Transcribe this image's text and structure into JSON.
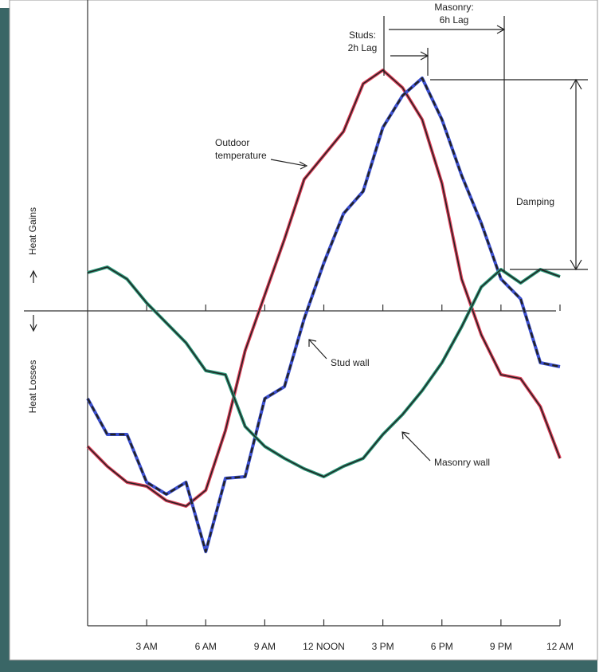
{
  "chart_data": {
    "type": "line",
    "x": [
      0,
      1,
      2,
      3,
      4,
      5,
      6,
      7,
      8,
      9,
      10,
      11,
      12,
      13,
      14,
      15,
      16,
      17,
      18,
      19,
      20,
      21,
      22,
      23,
      24
    ],
    "xlim": [
      0,
      24
    ],
    "xticks": [
      {
        "value": 3,
        "label": "3 AM"
      },
      {
        "value": 6,
        "label": "6 AM"
      },
      {
        "value": 9,
        "label": "9 AM"
      },
      {
        "value": 12,
        "label": "12 NOON"
      },
      {
        "value": 15,
        "label": "3 PM"
      },
      {
        "value": 18,
        "label": "6 PM"
      },
      {
        "value": 21,
        "label": "9 PM"
      },
      {
        "value": 24,
        "label": "12 AM"
      }
    ],
    "ylim": [
      -395,
      390
    ],
    "y_axis_labels": {
      "positive": "Heat Gains",
      "negative": "Heat Losses"
    },
    "series": [
      {
        "name": "Outdoor temperature",
        "color": "#e0405a",
        "dashed": false,
        "values": [
          -170,
          -195,
          -215,
          -220,
          -238,
          -245,
          -225,
          -150,
          -50,
          20,
          90,
          165,
          195,
          225,
          285,
          302,
          280,
          240,
          160,
          40,
          -30,
          -80,
          -85,
          -120,
          -185
        ]
      },
      {
        "name": "Stud wall",
        "color": "#3b4fd0",
        "dashed": true,
        "values": [
          -110,
          -155,
          -155,
          -215,
          -230,
          -215,
          -302,
          -210,
          -208,
          -110,
          -95,
          -10,
          60,
          122,
          150,
          230,
          270,
          292,
          240,
          170,
          110,
          40,
          15,
          -65,
          -70
        ]
      },
      {
        "name": "Masonry wall",
        "color": "#2a9a7a",
        "dashed": false,
        "values": [
          48,
          55,
          40,
          10,
          -15,
          -40,
          -75,
          -80,
          -145,
          -170,
          -185,
          -198,
          -208,
          -195,
          -185,
          -155,
          -130,
          -100,
          -65,
          -20,
          30,
          52,
          35,
          52,
          43
        ]
      }
    ],
    "annotations": [
      {
        "lines": [
          "Outdoor",
          "temperature"
        ]
      },
      {
        "lines": [
          "Stud wall"
        ]
      },
      {
        "lines": [
          "Masonry wall"
        ]
      },
      {
        "lines": [
          "Studs:",
          "2h Lag"
        ]
      },
      {
        "lines": [
          "Masonry:",
          "6h Lag"
        ]
      },
      {
        "lines": [
          "Damping"
        ]
      }
    ]
  }
}
